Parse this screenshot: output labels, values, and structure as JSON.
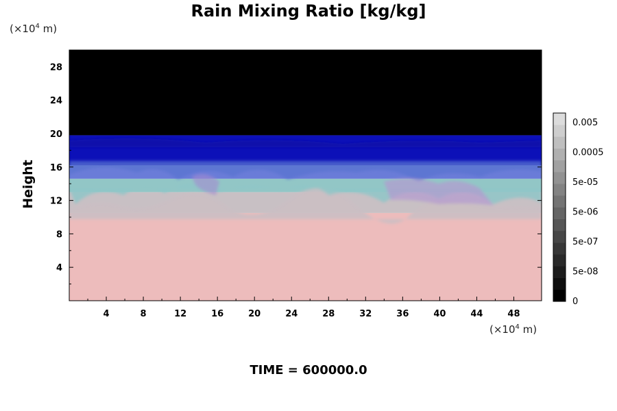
{
  "chart_data": {
    "type": "heatmap",
    "title": "Rain Mixing Ratio [kg/kg]",
    "xlabel": "",
    "ylabel": "Height",
    "x_unit": {
      "prefix": "(×10",
      "exp": "4",
      "suffix": " m)"
    },
    "y_unit": {
      "prefix": "(×10",
      "exp": "4",
      "suffix": " m)"
    },
    "xlim": [
      0,
      51
    ],
    "ylim": [
      0,
      30
    ],
    "x_ticks": [
      4,
      8,
      12,
      16,
      20,
      24,
      28,
      32,
      36,
      40,
      44,
      48
    ],
    "y_ticks": [
      4,
      8,
      12,
      16,
      20,
      24,
      28
    ],
    "bands": [
      {
        "from": 0,
        "to": 10.5,
        "color": "#edbcbc"
      },
      {
        "from": 10.5,
        "to": 13.0,
        "color": "#c8c0c4"
      },
      {
        "from": 13.0,
        "to": 14.6,
        "color": "#92c6c6"
      },
      {
        "from": 14.6,
        "to": 16.2,
        "color": "#6a7cd8"
      },
      {
        "from": 16.2,
        "to": 19.8,
        "color": "#0c10b8"
      },
      {
        "from": 19.8,
        "to": 30,
        "color": "#000000"
      }
    ],
    "colorbar": {
      "labels": [
        "0.005",
        "0.0005",
        "5e-05",
        "5e-06",
        "5e-07",
        "5e-08",
        "0"
      ],
      "colors": [
        "#000000",
        "#0e0e0e",
        "#1c1c1c",
        "#2a2a2a",
        "#383838",
        "#474747",
        "#565656",
        "#656565",
        "#747474",
        "#838383",
        "#929292",
        "#a1a1a1",
        "#b0b0b0",
        "#bfbfbf",
        "#cecece",
        "#dcdcdc"
      ]
    },
    "grid": false
  },
  "footer": {
    "time_label": "TIME = 600000.0"
  }
}
